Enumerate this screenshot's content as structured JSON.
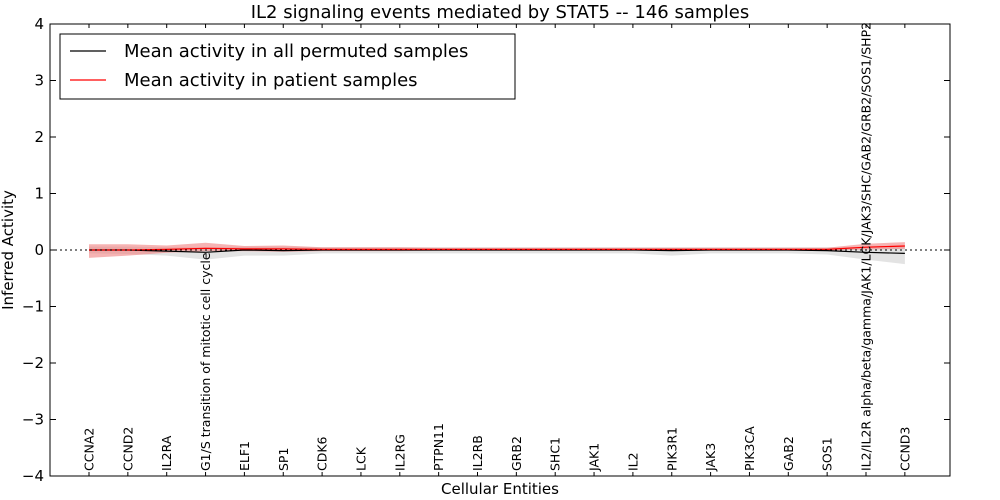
{
  "chart_data": {
    "type": "line",
    "title": "IL2 signaling events mediated by STAT5 -- 146 samples",
    "xlabel": "Cellular Entities",
    "ylabel": "Inferred Activity",
    "ylim": [
      -4,
      4
    ],
    "yticks": [
      4,
      3,
      2,
      1,
      0,
      -1,
      -2,
      -3,
      -4
    ],
    "ytick_labels": [
      "4",
      "3",
      "2",
      "1",
      "0",
      "−1",
      "−2",
      "−3",
      "−4"
    ],
    "grid": false,
    "legend_position": "top-left",
    "categories": [
      "CCNA2",
      "CCND2",
      "IL2RA",
      "G1/S transition of mitotic cell cycle",
      "ELF1",
      "SP1",
      "CDK6",
      "LCK",
      "IL2RG",
      "PTPN11",
      "IL2RB",
      "GRB2",
      "SHC1",
      "JAK1",
      "IL2",
      "PIK3R1",
      "JAK3",
      "PIK3CA",
      "GAB2",
      "SOS1",
      "IL2/IL2R alpha/beta/gamma/JAK1/LCK/JAK3/SHC/GAB2/GRB2/SOS1/SHP2",
      "CCND3"
    ],
    "series": [
      {
        "name": "Mean activity in all permuted samples",
        "color": "#000000",
        "band_color": "#c8c8c8",
        "values": [
          0.0,
          0.0,
          -0.02,
          -0.04,
          0.0,
          -0.01,
          0.0,
          0.0,
          0.0,
          0.0,
          0.0,
          0.0,
          0.0,
          0.0,
          0.0,
          -0.01,
          0.0,
          0.0,
          0.0,
          -0.01,
          -0.04,
          -0.06
        ],
        "upper": [
          0.06,
          0.06,
          0.05,
          0.05,
          0.06,
          0.06,
          0.05,
          0.05,
          0.05,
          0.05,
          0.05,
          0.05,
          0.05,
          0.05,
          0.05,
          0.05,
          0.05,
          0.05,
          0.05,
          0.05,
          0.05,
          0.06
        ],
        "lower": [
          -0.06,
          -0.07,
          -0.1,
          -0.17,
          -0.1,
          -0.1,
          -0.06,
          -0.06,
          -0.06,
          -0.06,
          -0.06,
          -0.06,
          -0.06,
          -0.06,
          -0.06,
          -0.1,
          -0.06,
          -0.06,
          -0.06,
          -0.08,
          -0.17,
          -0.25
        ]
      },
      {
        "name": "Mean activity in patient samples",
        "color": "#ff0000",
        "band_color": "#f08080",
        "values": [
          0.0,
          0.0,
          0.01,
          0.03,
          0.02,
          0.02,
          0.01,
          0.01,
          0.01,
          0.01,
          0.01,
          0.01,
          0.01,
          0.01,
          0.01,
          0.01,
          0.01,
          0.01,
          0.01,
          0.01,
          0.05,
          0.07
        ],
        "upper": [
          0.1,
          0.1,
          0.08,
          0.13,
          0.07,
          0.08,
          0.05,
          0.05,
          0.05,
          0.04,
          0.04,
          0.04,
          0.04,
          0.04,
          0.04,
          0.04,
          0.04,
          0.04,
          0.04,
          0.04,
          0.11,
          0.14
        ],
        "lower": [
          -0.14,
          -0.1,
          -0.05,
          -0.02,
          -0.02,
          -0.03,
          -0.02,
          -0.02,
          -0.02,
          -0.01,
          -0.01,
          -0.01,
          -0.01,
          -0.01,
          -0.01,
          -0.01,
          -0.01,
          -0.01,
          -0.01,
          -0.01,
          0.01,
          0.02
        ]
      }
    ]
  }
}
